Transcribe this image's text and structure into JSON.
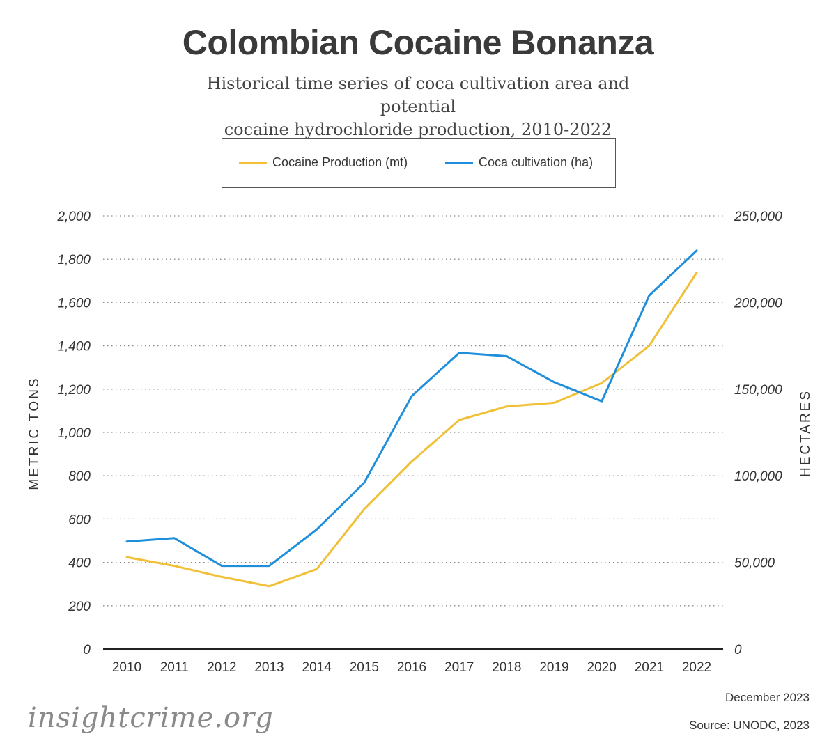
{
  "chart_data": {
    "type": "line",
    "title": "Colombian Cocaine Bonanza",
    "subtitle_line1": "Historical time series of coca cultivation area and potential",
    "subtitle_line2": "cocaine hydrochloride production, 2010-2022",
    "x": [
      "2010",
      "2011",
      "2012",
      "2013",
      "2014",
      "2015",
      "2016",
      "2017",
      "2018",
      "2019",
      "2020",
      "2021",
      "2022"
    ],
    "series": [
      {
        "name": "Cocaine Production (mt)",
        "axis": "left",
        "color": "#f2c037",
        "values": [
          424,
          384,
          333,
          290,
          369,
          646,
          866,
          1058,
          1120,
          1137,
          1228,
          1400,
          1738
        ]
      },
      {
        "name": "Coca cultivation (ha)",
        "axis": "right",
        "color": "#1f8fdc",
        "values": [
          62000,
          64000,
          48000,
          48000,
          69000,
          96000,
          146000,
          171000,
          169000,
          154000,
          143000,
          204000,
          230000
        ]
      }
    ],
    "ylabel_left": "METRIC TONS",
    "ylabel_right": "HECTARES",
    "ylim_left": [
      0,
      2000
    ],
    "ylim_right": [
      0,
      250000
    ],
    "yticks_left": [
      "0",
      "200",
      "400",
      "600",
      "800",
      "1,000",
      "1,200",
      "1,400",
      "1,600",
      "1,800",
      "2,000"
    ],
    "yticks_right": [
      "0",
      "50,000",
      "100,000",
      "150,000",
      "200,000",
      "250,000"
    ],
    "grid": "dotted-horizontal",
    "legend_position": "top-center"
  },
  "footer": {
    "date": "December 2023",
    "source": "Source: UNODC, 2023",
    "brand": "insightcrime.org"
  }
}
